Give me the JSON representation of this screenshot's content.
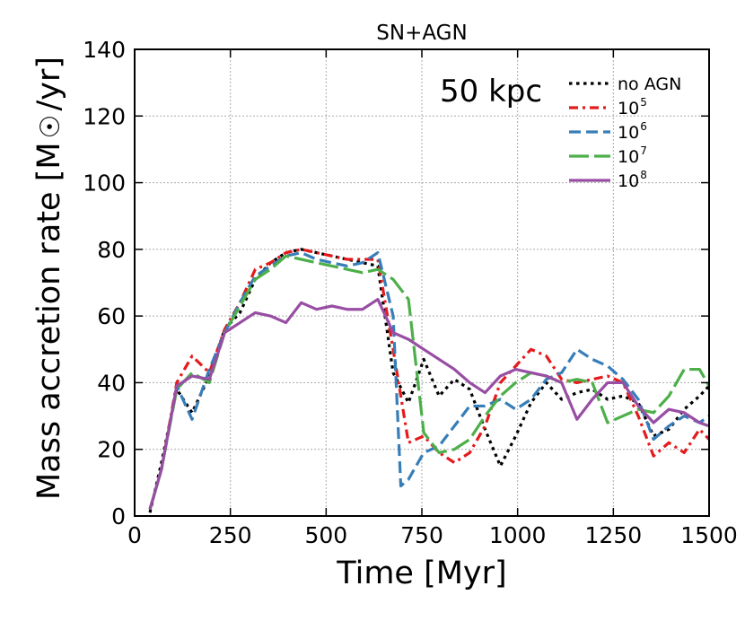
{
  "chart_data": {
    "type": "line",
    "title": "SN+AGN",
    "annotation": "50 kpc",
    "xlabel": "Time [Myr]",
    "ylabel_parts": [
      "Mass accretion rate [M",
      "/yr]"
    ],
    "ylabel_symbol": "sun-symbol",
    "xlim": [
      0,
      1500
    ],
    "ylim": [
      0,
      140
    ],
    "xticks": [
      0,
      250,
      500,
      750,
      1000,
      1250,
      1500
    ],
    "yticks": [
      0,
      20,
      40,
      60,
      80,
      100,
      120,
      140
    ],
    "grid": true,
    "legend_position": "top-right",
    "series": [
      {
        "name": "no AGN",
        "label_base": "no AGN",
        "label_exp": "",
        "color": "#000000",
        "dash": "dotted",
        "x": [
          40,
          70,
          110,
          150,
          195,
          235,
          275,
          315,
          355,
          395,
          435,
          475,
          515,
          555,
          595,
          635,
          675,
          715,
          755,
          795,
          835,
          875,
          915,
          955,
          995,
          1035,
          1075,
          1115,
          1155,
          1195,
          1235,
          1275,
          1315,
          1355,
          1395,
          1435,
          1475,
          1500
        ],
        "y": [
          1,
          16,
          38,
          31,
          42,
          56,
          61,
          71,
          76,
          79,
          80,
          79,
          78,
          77,
          76,
          75,
          43,
          34,
          47,
          36,
          41,
          38,
          26,
          15,
          24,
          34,
          40,
          35,
          37,
          38,
          35,
          36,
          34,
          24,
          26,
          32,
          36,
          39
        ]
      },
      {
        "name": "10^5",
        "label_base": "10",
        "label_exp": "5",
        "color": "#e41a1c",
        "dash": "dashdot",
        "x": [
          40,
          70,
          110,
          150,
          195,
          235,
          275,
          315,
          355,
          395,
          435,
          475,
          515,
          555,
          595,
          635,
          675,
          715,
          755,
          795,
          835,
          875,
          915,
          955,
          995,
          1035,
          1075,
          1115,
          1155,
          1195,
          1235,
          1275,
          1315,
          1355,
          1395,
          1435,
          1475,
          1500
        ],
        "y": [
          2,
          14,
          40,
          48,
          43,
          56,
          64,
          74,
          76,
          79,
          80,
          79,
          78,
          77,
          77,
          77,
          50,
          22,
          24,
          19,
          16,
          19,
          27,
          40,
          45,
          50,
          48,
          41,
          40,
          41,
          42,
          40,
          30,
          18,
          22,
          19,
          26,
          23
        ]
      },
      {
        "name": "10^6",
        "label_base": "10",
        "label_exp": "6",
        "color": "#377eb8",
        "dash": "dashed",
        "x": [
          40,
          70,
          110,
          150,
          195,
          235,
          275,
          315,
          355,
          395,
          435,
          475,
          515,
          555,
          595,
          635,
          675,
          695,
          715,
          755,
          795,
          835,
          875,
          915,
          955,
          995,
          1035,
          1075,
          1115,
          1155,
          1195,
          1235,
          1275,
          1315,
          1355,
          1395,
          1435,
          1475,
          1500
        ],
        "y": [
          2,
          14,
          39,
          29,
          44,
          55,
          64,
          72,
          75,
          78,
          79,
          77,
          76,
          75,
          76,
          79,
          60,
          9,
          11,
          19,
          21,
          27,
          33,
          33,
          35,
          32,
          35,
          41,
          43,
          50,
          47,
          45,
          41,
          35,
          23,
          27,
          30,
          28,
          30
        ]
      },
      {
        "name": "10^7",
        "label_base": "10",
        "label_exp": "7",
        "color": "#4daf4a",
        "dash": "longdash",
        "x": [
          40,
          70,
          110,
          150,
          195,
          235,
          275,
          315,
          355,
          395,
          435,
          475,
          515,
          555,
          595,
          635,
          675,
          715,
          755,
          795,
          835,
          875,
          915,
          955,
          995,
          1035,
          1075,
          1115,
          1155,
          1195,
          1235,
          1275,
          1315,
          1355,
          1395,
          1435,
          1475,
          1500
        ],
        "y": [
          2,
          14,
          38,
          43,
          40,
          55,
          63,
          71,
          74,
          78,
          77,
          76,
          75,
          74,
          73,
          74,
          71,
          65,
          25,
          19,
          20,
          23,
          30,
          36,
          40,
          43,
          42,
          40,
          41,
          40,
          28,
          30,
          32,
          31,
          36,
          44,
          44,
          39
        ]
      },
      {
        "name": "10^8",
        "label_base": "10",
        "label_exp": "8",
        "color": "#984ea3",
        "dash": "solid",
        "x": [
          40,
          70,
          110,
          150,
          195,
          235,
          275,
          315,
          355,
          395,
          435,
          475,
          515,
          555,
          595,
          635,
          675,
          715,
          755,
          795,
          835,
          875,
          915,
          955,
          995,
          1035,
          1075,
          1115,
          1155,
          1195,
          1235,
          1275,
          1315,
          1355,
          1395,
          1435,
          1475,
          1500
        ],
        "y": [
          2,
          14,
          39,
          42,
          41,
          55,
          58,
          61,
          60,
          58,
          64,
          62,
          63,
          62,
          62,
          65,
          55,
          53,
          50,
          47,
          44,
          40,
          37,
          42,
          44,
          43,
          42,
          40,
          29,
          35,
          40,
          40,
          33,
          28,
          32,
          31,
          28,
          27
        ]
      }
    ]
  }
}
